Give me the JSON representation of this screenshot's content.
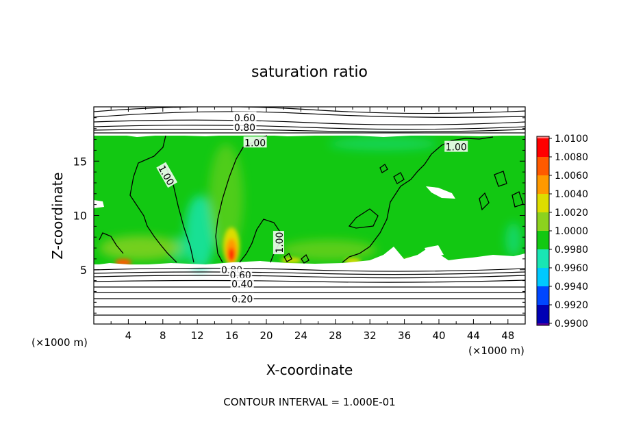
{
  "chart_data": {
    "type": "heatmap",
    "title": "saturation ratio",
    "xlabel": "X-coordinate",
    "ylabel": "Z-coordinate",
    "x_unit_note": "(×1000 m)",
    "y_unit_note": "(×1000 m)",
    "footer": "CONTOUR INTERVAL = 1.000E-01",
    "xlim": [
      0,
      50
    ],
    "ylim": [
      0,
      20
    ],
    "x_ticks": [
      4,
      8,
      12,
      16,
      20,
      24,
      28,
      32,
      36,
      40,
      44,
      48
    ],
    "y_ticks": [
      5,
      10,
      15
    ],
    "colorbar": {
      "min": 0.99,
      "max": 1.01,
      "labels": [
        "1.0100",
        "1.0080",
        "1.0060",
        "1.0040",
        "1.0020",
        "1.0000",
        "0.9980",
        "0.9960",
        "0.9940",
        "0.9920",
        "0.9900"
      ],
      "colors": [
        "#ff8080",
        "#ff0000",
        "#ff5a00",
        "#ff9900",
        "#dddd00",
        "#8cd21e",
        "#12c812",
        "#19e6b4",
        "#00c8ff",
        "#0046ff",
        "#0000b4",
        "#5a0096"
      ]
    },
    "contour_labels": [
      {
        "text": "0.60",
        "x": 17.5,
        "z": 19.0
      },
      {
        "text": "0.80",
        "x": 17.5,
        "z": 18.1
      },
      {
        "text": "1.00",
        "x": 18.7,
        "z": 16.7
      },
      {
        "text": "1.00",
        "x": 8.4,
        "z": 13.7,
        "rotate": 60
      },
      {
        "text": "1.00",
        "x": 42.0,
        "z": 16.3
      },
      {
        "text": "1.00",
        "x": 21.5,
        "z": 7.5,
        "rotate": -90
      },
      {
        "text": "0.80",
        "x": 16.0,
        "z": 5.0
      },
      {
        "text": "0.60",
        "x": 17.0,
        "z": 4.5
      },
      {
        "text": "0.40",
        "x": 17.2,
        "z": 3.7
      },
      {
        "text": "0.20",
        "x": 17.2,
        "z": 2.3
      }
    ],
    "field_features": {
      "cloud_layer_z": [
        5.3,
        17.3
      ],
      "peak_value": 1.008,
      "peak_location": {
        "x": 16,
        "z": 6.3
      },
      "minimum_updraft_x": 12.7,
      "background_value": 1.0
    }
  }
}
